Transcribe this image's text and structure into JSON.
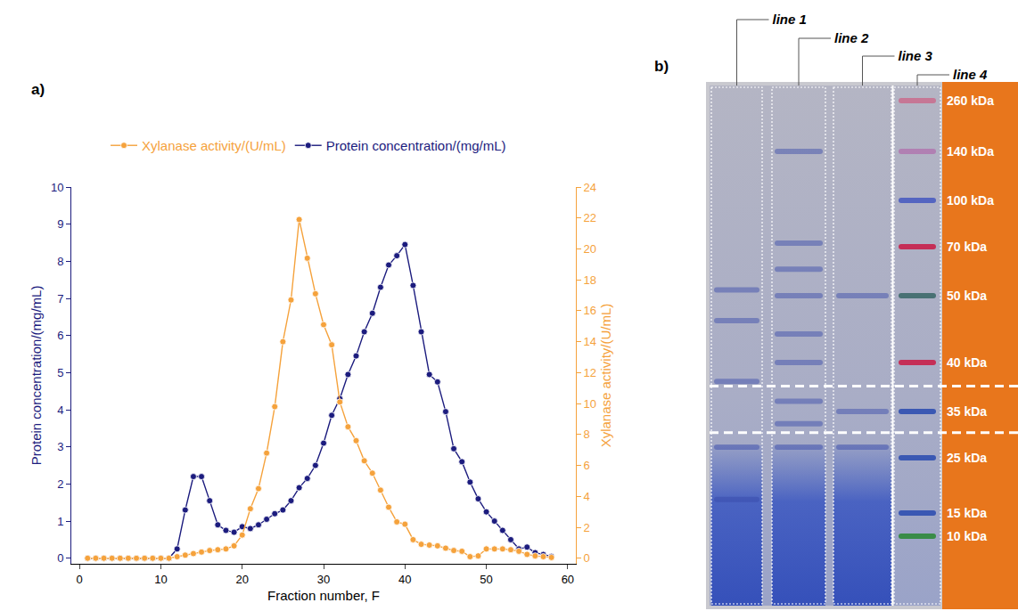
{
  "chart_data": {
    "type": "line",
    "panel_label": "a)",
    "xlabel": "Fraction number, F",
    "ylabel": "Protein concentration/(mg/mL)",
    "y2label": "Xylanase activity/(U/mL)",
    "x": [
      1,
      2,
      3,
      4,
      5,
      6,
      7,
      8,
      9,
      10,
      11,
      12,
      13,
      14,
      15,
      16,
      17,
      18,
      19,
      20,
      21,
      22,
      23,
      24,
      25,
      26,
      27,
      28,
      29,
      30,
      31,
      32,
      33,
      34,
      35,
      36,
      37,
      38,
      39,
      40,
      41,
      42,
      43,
      44,
      45,
      46,
      47,
      48,
      49,
      50,
      51,
      52,
      53,
      54,
      55,
      56,
      57,
      58
    ],
    "xlim": [
      -1,
      61
    ],
    "xticks": [
      0,
      10,
      20,
      30,
      40,
      50,
      60
    ],
    "ylim": [
      -0.15,
      10
    ],
    "yticks": [
      0,
      1,
      2,
      3,
      4,
      5,
      6,
      7,
      8,
      9,
      10
    ],
    "y2lim": [
      -0.36,
      24
    ],
    "y2ticks": [
      0,
      2,
      4,
      6,
      8,
      10,
      12,
      14,
      16,
      18,
      20,
      22,
      24
    ],
    "grid": false,
    "legend": "top",
    "series": [
      {
        "name": "Xylanase activity/(U/mL)",
        "color": "#f5a23c",
        "axis": "y2",
        "marker": "circle",
        "line_style": "solid",
        "values": [
          0,
          0,
          0,
          0,
          0,
          0,
          0,
          0,
          0,
          0,
          0,
          0.1,
          0.2,
          0.3,
          0.4,
          0.5,
          0.55,
          0.6,
          0.8,
          1.5,
          3.2,
          4.5,
          6.8,
          9.8,
          14.0,
          16.7,
          21.9,
          19.4,
          17.1,
          15.1,
          13.8,
          10.1,
          8.5,
          7.6,
          6.3,
          5.5,
          4.4,
          3.3,
          2.35,
          2.2,
          1.2,
          0.9,
          0.85,
          0.8,
          0.65,
          0.5,
          0.45,
          0.1,
          0.15,
          0.6,
          0.6,
          0.6,
          0.55,
          0.45,
          0.25,
          0.15,
          0.1,
          0.05
        ]
      },
      {
        "name": "Protein concentration/(mg/mL)",
        "color": "#1c1c7e",
        "axis": "y",
        "marker": "circle",
        "line_style": "solid",
        "values": [
          0,
          0,
          0,
          0,
          0,
          0,
          0,
          0,
          0,
          0,
          0,
          0.25,
          1.3,
          2.2,
          2.2,
          1.55,
          0.9,
          0.75,
          0.7,
          0.85,
          0.8,
          0.9,
          1.05,
          1.2,
          1.3,
          1.55,
          1.9,
          2.15,
          2.5,
          3.1,
          3.85,
          4.3,
          4.95,
          5.45,
          6.1,
          6.6,
          7.3,
          7.9,
          8.15,
          8.45,
          7.35,
          6.1,
          4.95,
          4.75,
          3.95,
          2.95,
          2.6,
          2.05,
          1.6,
          1.25,
          1.0,
          0.75,
          0.5,
          0.25,
          0.3,
          0.15,
          0.1,
          0.05
        ]
      }
    ]
  },
  "gel": {
    "panel_label": "b)",
    "lanes": [
      {
        "label": "line 1",
        "bands": [
          52,
          46,
          38,
          27,
          17
        ]
      },
      {
        "label": "line 2",
        "bands": [
          140,
          72,
          60,
          50,
          44,
          40,
          36,
          32,
          27
        ]
      },
      {
        "label": "line 3",
        "bands": [
          50,
          35,
          27
        ]
      },
      {
        "label": "line 4",
        "ladder": true
      }
    ],
    "ladder": [
      {
        "value": 260,
        "label": "260 kDa",
        "color": "#c87090"
      },
      {
        "value": 140,
        "label": "140 kDa",
        "color": "#b07ab0"
      },
      {
        "value": 100,
        "label": "100 kDa",
        "color": "#4a5cc0"
      },
      {
        "value": 70,
        "label": "70 kDa",
        "color": "#c8204a"
      },
      {
        "value": 50,
        "label": "50 kDa",
        "color": "#3e6a6a"
      },
      {
        "value": 40,
        "label": "40 kDa",
        "color": "#c8204a"
      },
      {
        "value": 35,
        "label": "35 kDa",
        "color": "#2f4fb0"
      },
      {
        "value": 25,
        "label": "25 kDa",
        "color": "#2f4fb0"
      },
      {
        "value": 15,
        "label": "15 kDa",
        "color": "#2f4fb0"
      },
      {
        "value": 10,
        "label": "10 kDa",
        "color": "#2e8a3a"
      }
    ],
    "dashed_lines": [
      37.5,
      30
    ]
  }
}
